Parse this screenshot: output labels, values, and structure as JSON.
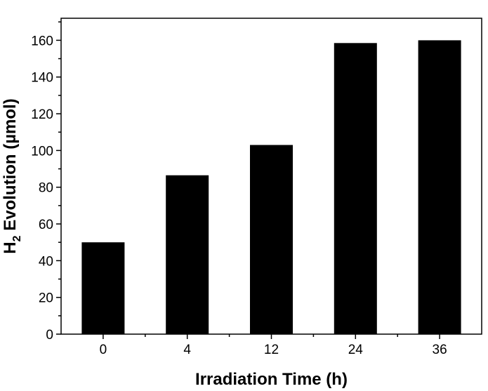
{
  "chart_data": {
    "type": "bar",
    "categories": [
      "0",
      "4",
      "12",
      "24",
      "36"
    ],
    "values": [
      50,
      86.5,
      103,
      158.5,
      160
    ],
    "xlabel": "Irradiation Time (h)",
    "ylabel": {
      "prefix": "H",
      "subscript": "2",
      "suffix": " Evolution (µmol)"
    },
    "ylim": [
      0,
      172
    ],
    "yticks": [
      "0",
      "20",
      "40",
      "60",
      "80",
      "100",
      "120",
      "140",
      "160"
    ],
    "bar_color": "#000000",
    "grid": false,
    "legend": "none"
  }
}
